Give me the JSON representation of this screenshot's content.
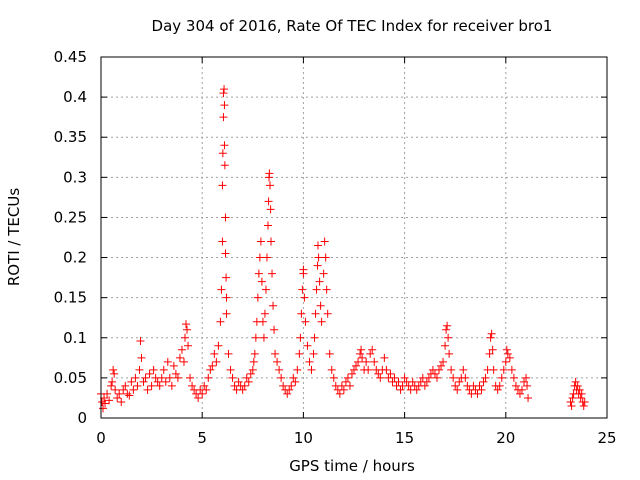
{
  "chart_data": {
    "type": "scatter",
    "title": "Day 304 of 2016, Rate Of TEC Index for receiver bro1",
    "xlabel": "GPS time / hours",
    "ylabel": "ROTI / TECUs",
    "xlim": [
      0,
      25
    ],
    "ylim": [
      0,
      0.45
    ],
    "xticks": [
      0,
      5,
      10,
      15,
      20,
      25
    ],
    "yticks": [
      0,
      0.05,
      0.1,
      0.15,
      0.2,
      0.25,
      0.3,
      0.35,
      0.4,
      0.45
    ],
    "xtick_labels": [
      "0",
      "5",
      "10",
      "15",
      "20",
      "25"
    ],
    "ytick_labels": [
      "0",
      "0.05",
      "0.1",
      "0.15",
      "0.2",
      "0.25",
      "0.3",
      "0.35",
      "0.4",
      "0.45"
    ],
    "grid": true,
    "marker": "plus",
    "color": "#ff0000",
    "series": [
      {
        "points": [
          [
            0.0,
            0.03
          ],
          [
            0.05,
            0.02
          ],
          [
            0.1,
            0.012
          ],
          [
            0.15,
            0.025
          ],
          [
            0.2,
            0.018
          ],
          [
            0.3,
            0.03
          ],
          [
            0.4,
            0.022
          ],
          [
            0.5,
            0.04
          ],
          [
            0.55,
            0.045
          ],
          [
            0.6,
            0.06
          ],
          [
            0.65,
            0.055
          ],
          [
            0.7,
            0.035
          ],
          [
            0.8,
            0.025
          ],
          [
            0.9,
            0.03
          ],
          [
            1.0,
            0.02
          ],
          [
            1.1,
            0.035
          ],
          [
            1.2,
            0.04
          ],
          [
            1.3,
            0.03
          ],
          [
            1.4,
            0.028
          ],
          [
            1.5,
            0.045
          ],
          [
            1.6,
            0.035
          ],
          [
            1.7,
            0.05
          ],
          [
            1.8,
            0.04
          ],
          [
            1.9,
            0.06
          ],
          [
            1.95,
            0.096
          ],
          [
            2.0,
            0.075
          ],
          [
            2.1,
            0.045
          ],
          [
            2.2,
            0.05
          ],
          [
            2.3,
            0.035
          ],
          [
            2.4,
            0.055
          ],
          [
            2.5,
            0.04
          ],
          [
            2.6,
            0.06
          ],
          [
            2.7,
            0.05
          ],
          [
            2.8,
            0.045
          ],
          [
            2.9,
            0.04
          ],
          [
            3.0,
            0.05
          ],
          [
            3.1,
            0.06
          ],
          [
            3.2,
            0.045
          ],
          [
            3.3,
            0.07
          ],
          [
            3.4,
            0.05
          ],
          [
            3.5,
            0.04
          ],
          [
            3.6,
            0.065
          ],
          [
            3.7,
            0.055
          ],
          [
            3.8,
            0.05
          ],
          [
            3.9,
            0.075
          ],
          [
            4.0,
            0.085
          ],
          [
            4.1,
            0.07
          ],
          [
            4.15,
            0.1
          ],
          [
            4.2,
            0.117
          ],
          [
            4.25,
            0.11
          ],
          [
            4.3,
            0.09
          ],
          [
            4.4,
            0.05
          ],
          [
            4.5,
            0.04
          ],
          [
            4.6,
            0.035
          ],
          [
            4.7,
            0.03
          ],
          [
            4.8,
            0.025
          ],
          [
            4.9,
            0.035
          ],
          [
            5.0,
            0.03
          ],
          [
            5.1,
            0.04
          ],
          [
            5.2,
            0.035
          ],
          [
            5.3,
            0.05
          ],
          [
            5.4,
            0.06
          ],
          [
            5.5,
            0.065
          ],
          [
            5.6,
            0.08
          ],
          [
            5.7,
            0.07
          ],
          [
            5.8,
            0.09
          ],
          [
            5.9,
            0.12
          ],
          [
            5.95,
            0.16
          ],
          [
            6.0,
            0.22
          ],
          [
            6.0,
            0.29
          ],
          [
            6.02,
            0.33
          ],
          [
            6.05,
            0.375
          ],
          [
            6.05,
            0.405
          ],
          [
            6.08,
            0.41
          ],
          [
            6.1,
            0.39
          ],
          [
            6.1,
            0.34
          ],
          [
            6.12,
            0.315
          ],
          [
            6.15,
            0.25
          ],
          [
            6.15,
            0.205
          ],
          [
            6.18,
            0.175
          ],
          [
            6.2,
            0.15
          ],
          [
            6.2,
            0.13
          ],
          [
            6.3,
            0.08
          ],
          [
            6.4,
            0.06
          ],
          [
            6.5,
            0.05
          ],
          [
            6.6,
            0.04
          ],
          [
            6.7,
            0.035
          ],
          [
            6.8,
            0.045
          ],
          [
            6.9,
            0.04
          ],
          [
            7.0,
            0.035
          ],
          [
            7.1,
            0.04
          ],
          [
            7.2,
            0.05
          ],
          [
            7.3,
            0.045
          ],
          [
            7.4,
            0.055
          ],
          [
            7.5,
            0.06
          ],
          [
            7.55,
            0.07
          ],
          [
            7.6,
            0.08
          ],
          [
            7.65,
            0.1
          ],
          [
            7.7,
            0.12
          ],
          [
            7.75,
            0.15
          ],
          [
            7.8,
            0.18
          ],
          [
            7.85,
            0.2
          ],
          [
            7.9,
            0.22
          ],
          [
            7.95,
            0.17
          ],
          [
            8.0,
            0.12
          ],
          [
            8.05,
            0.1
          ],
          [
            8.1,
            0.13
          ],
          [
            8.15,
            0.16
          ],
          [
            8.2,
            0.2
          ],
          [
            8.25,
            0.24
          ],
          [
            8.28,
            0.27
          ],
          [
            8.3,
            0.3
          ],
          [
            8.32,
            0.305
          ],
          [
            8.35,
            0.29
          ],
          [
            8.38,
            0.26
          ],
          [
            8.4,
            0.22
          ],
          [
            8.45,
            0.18
          ],
          [
            8.5,
            0.14
          ],
          [
            8.55,
            0.11
          ],
          [
            8.6,
            0.08
          ],
          [
            8.7,
            0.07
          ],
          [
            8.8,
            0.06
          ],
          [
            8.9,
            0.05
          ],
          [
            9.0,
            0.04
          ],
          [
            9.1,
            0.035
          ],
          [
            9.2,
            0.03
          ],
          [
            9.3,
            0.035
          ],
          [
            9.4,
            0.04
          ],
          [
            9.5,
            0.05
          ],
          [
            9.6,
            0.045
          ],
          [
            9.7,
            0.06
          ],
          [
            9.8,
            0.08
          ],
          [
            9.85,
            0.1
          ],
          [
            9.9,
            0.13
          ],
          [
            9.95,
            0.16
          ],
          [
            10.0,
            0.185
          ],
          [
            10.0,
            0.18
          ],
          [
            10.05,
            0.15
          ],
          [
            10.1,
            0.12
          ],
          [
            10.2,
            0.09
          ],
          [
            10.3,
            0.07
          ],
          [
            10.4,
            0.06
          ],
          [
            10.5,
            0.08
          ],
          [
            10.55,
            0.1
          ],
          [
            10.6,
            0.13
          ],
          [
            10.65,
            0.16
          ],
          [
            10.7,
            0.19
          ],
          [
            10.72,
            0.215
          ],
          [
            10.75,
            0.2
          ],
          [
            10.8,
            0.17
          ],
          [
            10.85,
            0.14
          ],
          [
            10.9,
            0.12
          ],
          [
            11.0,
            0.18
          ],
          [
            11.05,
            0.22
          ],
          [
            11.1,
            0.2
          ],
          [
            11.15,
            0.16
          ],
          [
            11.2,
            0.13
          ],
          [
            11.3,
            0.08
          ],
          [
            11.4,
            0.06
          ],
          [
            11.5,
            0.05
          ],
          [
            11.6,
            0.04
          ],
          [
            11.7,
            0.035
          ],
          [
            11.8,
            0.03
          ],
          [
            11.9,
            0.04
          ],
          [
            12.0,
            0.035
          ],
          [
            12.1,
            0.045
          ],
          [
            12.2,
            0.05
          ],
          [
            12.3,
            0.04
          ],
          [
            12.4,
            0.055
          ],
          [
            12.5,
            0.06
          ],
          [
            12.6,
            0.065
          ],
          [
            12.7,
            0.07
          ],
          [
            12.8,
            0.08
          ],
          [
            12.85,
            0.085
          ],
          [
            12.9,
            0.075
          ],
          [
            13.0,
            0.06
          ],
          [
            13.1,
            0.07
          ],
          [
            13.2,
            0.06
          ],
          [
            13.3,
            0.08
          ],
          [
            13.4,
            0.085
          ],
          [
            13.5,
            0.07
          ],
          [
            13.6,
            0.06
          ],
          [
            13.7,
            0.055
          ],
          [
            13.8,
            0.05
          ],
          [
            13.9,
            0.06
          ],
          [
            14.0,
            0.075
          ],
          [
            14.1,
            0.06
          ],
          [
            14.2,
            0.05
          ],
          [
            14.3,
            0.055
          ],
          [
            14.4,
            0.045
          ],
          [
            14.5,
            0.05
          ],
          [
            14.6,
            0.04
          ],
          [
            14.7,
            0.045
          ],
          [
            14.8,
            0.035
          ],
          [
            14.9,
            0.04
          ],
          [
            15.0,
            0.05
          ],
          [
            15.1,
            0.045
          ],
          [
            15.2,
            0.04
          ],
          [
            15.3,
            0.035
          ],
          [
            15.4,
            0.045
          ],
          [
            15.5,
            0.04
          ],
          [
            15.6,
            0.035
          ],
          [
            15.7,
            0.04
          ],
          [
            15.8,
            0.045
          ],
          [
            15.9,
            0.05
          ],
          [
            16.0,
            0.04
          ],
          [
            16.1,
            0.045
          ],
          [
            16.2,
            0.05
          ],
          [
            16.3,
            0.055
          ],
          [
            16.4,
            0.06
          ],
          [
            16.5,
            0.055
          ],
          [
            16.6,
            0.05
          ],
          [
            16.7,
            0.06
          ],
          [
            16.8,
            0.065
          ],
          [
            16.9,
            0.07
          ],
          [
            17.0,
            0.09
          ],
          [
            17.05,
            0.11
          ],
          [
            17.1,
            0.115
          ],
          [
            17.15,
            0.1
          ],
          [
            17.2,
            0.08
          ],
          [
            17.3,
            0.06
          ],
          [
            17.4,
            0.05
          ],
          [
            17.5,
            0.04
          ],
          [
            17.6,
            0.035
          ],
          [
            17.7,
            0.045
          ],
          [
            17.8,
            0.05
          ],
          [
            17.9,
            0.06
          ],
          [
            18.0,
            0.05
          ],
          [
            18.1,
            0.04
          ],
          [
            18.2,
            0.035
          ],
          [
            18.3,
            0.03
          ],
          [
            18.4,
            0.04
          ],
          [
            18.5,
            0.035
          ],
          [
            18.6,
            0.03
          ],
          [
            18.7,
            0.04
          ],
          [
            18.8,
            0.035
          ],
          [
            18.9,
            0.045
          ],
          [
            19.0,
            0.05
          ],
          [
            19.1,
            0.06
          ],
          [
            19.2,
            0.08
          ],
          [
            19.25,
            0.1
          ],
          [
            19.3,
            0.105
          ],
          [
            19.35,
            0.085
          ],
          [
            19.4,
            0.06
          ],
          [
            19.5,
            0.04
          ],
          [
            19.6,
            0.035
          ],
          [
            19.7,
            0.04
          ],
          [
            19.8,
            0.05
          ],
          [
            19.9,
            0.06
          ],
          [
            20.0,
            0.07
          ],
          [
            20.05,
            0.085
          ],
          [
            20.1,
            0.08
          ],
          [
            20.2,
            0.075
          ],
          [
            20.3,
            0.06
          ],
          [
            20.4,
            0.05
          ],
          [
            20.5,
            0.04
          ],
          [
            20.6,
            0.035
          ],
          [
            20.7,
            0.03
          ],
          [
            20.8,
            0.035
          ],
          [
            20.9,
            0.045
          ],
          [
            21.0,
            0.05
          ],
          [
            21.05,
            0.04
          ],
          [
            21.1,
            0.025
          ],
          [
            23.2,
            0.02
          ],
          [
            23.25,
            0.015
          ],
          [
            23.3,
            0.025
          ],
          [
            23.35,
            0.03
          ],
          [
            23.4,
            0.04
          ],
          [
            23.45,
            0.045
          ],
          [
            23.5,
            0.035
          ],
          [
            23.55,
            0.04
          ],
          [
            23.6,
            0.03
          ],
          [
            23.65,
            0.035
          ],
          [
            23.7,
            0.025
          ],
          [
            23.75,
            0.03
          ],
          [
            23.8,
            0.02
          ],
          [
            23.85,
            0.015
          ],
          [
            23.9,
            0.02
          ]
        ]
      }
    ]
  }
}
